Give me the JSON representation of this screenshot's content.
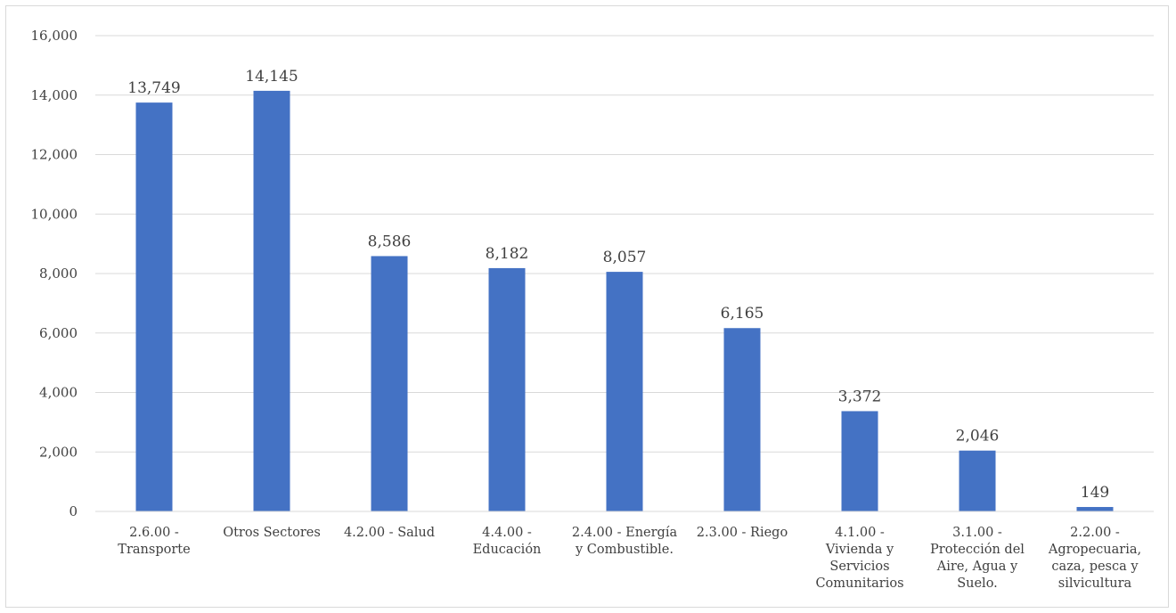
{
  "chart_data": {
    "type": "bar",
    "title": "",
    "xlabel": "",
    "ylabel": "",
    "ylim": [
      0,
      16000
    ],
    "yticks": [
      0,
      2000,
      4000,
      6000,
      8000,
      10000,
      12000,
      14000,
      16000
    ],
    "ytick_labels": [
      "0",
      "2,000",
      "4,000",
      "6,000",
      "8,000",
      "10,000",
      "12,000",
      "14,000",
      "16,000"
    ],
    "grid": true,
    "legend": "none",
    "bar_color": "#4472C4",
    "categories": [
      [
        "2.6.00 -",
        "Transporte"
      ],
      [
        "Otros Sectores"
      ],
      [
        "4.2.00 -  Salud"
      ],
      [
        "4.4.00 -",
        "Educación"
      ],
      [
        "2.4.00 -  Energía",
        "y Combustible."
      ],
      [
        "2.3.00 -  Riego"
      ],
      [
        "4.1.00 -",
        "Vivienda y",
        "Servicios",
        "Comunitarios"
      ],
      [
        "3.1.00 -",
        "Protección del",
        "Aire, Agua y",
        "Suelo."
      ],
      [
        "2.2.00 -",
        "Agropecuaria,",
        "caza, pesca y",
        "silvicultura"
      ]
    ],
    "values": [
      13749,
      14145,
      8586,
      8182,
      8057,
      6165,
      3372,
      2046,
      149
    ],
    "data_labels": [
      "13,749",
      "14,145",
      "8,586",
      "8,182",
      "8,057",
      "6,165",
      "3,372",
      "2,046",
      "149"
    ]
  }
}
